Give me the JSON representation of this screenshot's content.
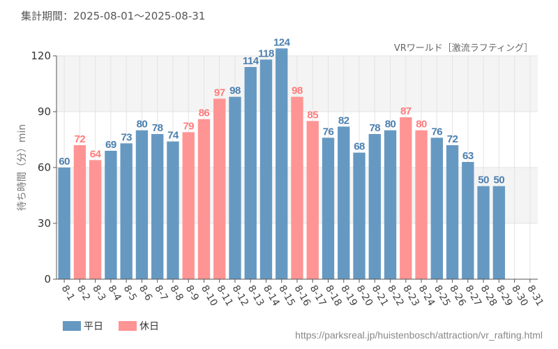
{
  "header": {
    "period": "集計期間：2025-08-01～2025-08-31"
  },
  "footer": {
    "source_url": "https://parksreal.jp/huistenbosch/attraction/vr_rafting.html"
  },
  "colors": {
    "weekday": "#6699c2",
    "holiday": "#ff9494",
    "weekday_label": "#4b7fb0",
    "holiday_label": "#ff7b7b",
    "holiday_tick": "#ff8a8a"
  },
  "chart_data": {
    "type": "bar",
    "title": "VRワールド［激流ラフティング］",
    "xlabel": "",
    "ylabel": "待ち時間（分）min",
    "ylim": [
      0,
      120
    ],
    "yticks": [
      0,
      30,
      60,
      90,
      120
    ],
    "grid": true,
    "legend_position": "bottom-left",
    "categories": [
      "8-1",
      "8-2",
      "8-3",
      "8-4",
      "8-5",
      "8-6",
      "8-7",
      "8-8",
      "8-9",
      "8-10",
      "8-11",
      "8-12",
      "8-13",
      "8-14",
      "8-15",
      "8-16",
      "8-17",
      "8-18",
      "8-19",
      "8-20",
      "8-21",
      "8-22",
      "8-23",
      "8-24",
      "8-25",
      "8-26",
      "8-27",
      "8-28",
      "8-29",
      "8-30",
      "8-31"
    ],
    "values": [
      60,
      72,
      64,
      69,
      73,
      80,
      78,
      74,
      79,
      86,
      97,
      98,
      114,
      118,
      124,
      98,
      85,
      76,
      82,
      68,
      78,
      80,
      87,
      80,
      76,
      72,
      63,
      50,
      50,
      null,
      null
    ],
    "day_type": [
      "weekday",
      "holiday",
      "holiday",
      "weekday",
      "weekday",
      "weekday",
      "weekday",
      "weekday",
      "holiday",
      "holiday",
      "holiday",
      "weekday",
      "weekday",
      "weekday",
      "weekday",
      "holiday",
      "holiday",
      "weekday",
      "weekday",
      "weekday",
      "weekday",
      "weekday",
      "holiday",
      "holiday",
      "weekday",
      "weekday",
      "weekday",
      "weekday",
      "weekday",
      "holiday",
      "holiday"
    ],
    "series": [
      {
        "name": "平日",
        "key": "weekday"
      },
      {
        "name": "休日",
        "key": "holiday"
      }
    ]
  }
}
